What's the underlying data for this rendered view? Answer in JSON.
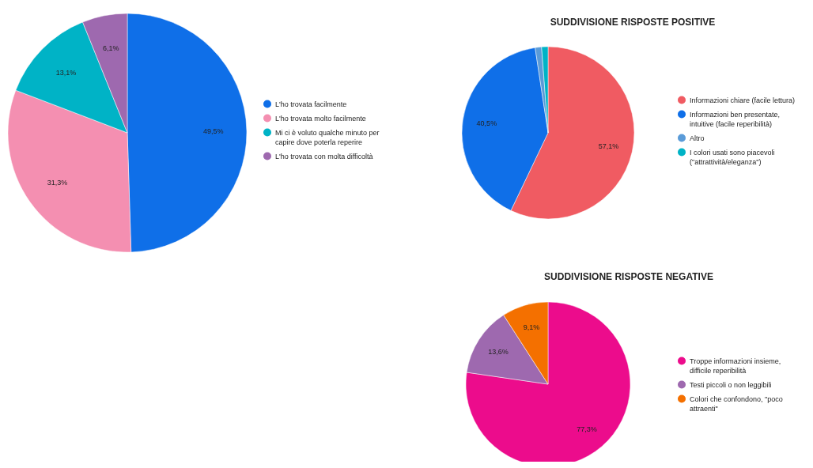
{
  "chart_data": [
    {
      "type": "pie",
      "categories": [
        "L'ho trovata facilmente",
        "L'ho trovata molto facilmente",
        "Mi ci è voluto qualche minuto per capire dove poterla reperire",
        "L'ho trovata con molta difficoltà"
      ],
      "values": [
        49.5,
        31.3,
        13.1,
        6.1
      ],
      "colors": [
        "#0f6fe8",
        "#f48fb1",
        "#00b3c6",
        "#9e69af"
      ],
      "value_labels": [
        "49,5%",
        "31,3%",
        "13,1%",
        "6,1%"
      ],
      "legend": "right"
    },
    {
      "type": "pie",
      "title": "SUDDIVISIONE RISPOSTE POSITIVE",
      "categories": [
        "Informazioni chiare (facile lettura)",
        "Informazioni ben presentate, intuitive (facile reperibilità)",
        "Altro",
        "I colori usati sono piacevoli (\"attrattività/eleganza\")"
      ],
      "values": [
        57.1,
        40.5,
        1.2,
        1.2
      ],
      "colors": [
        "#f05b62",
        "#0f6fe8",
        "#5a9bd8",
        "#00b3c6"
      ],
      "value_labels": [
        "57,1%",
        "40,5%",
        null,
        null
      ],
      "legend": "right"
    },
    {
      "type": "pie",
      "title": "SUDDIVISIONE RISPOSTE NEGATIVE",
      "categories": [
        "Troppe informazioni insieme, difficile reperibilità",
        "Testi piccoli o non leggibili",
        "Colori che confondono, \"poco attraenti\""
      ],
      "values": [
        77.3,
        13.6,
        9.1
      ],
      "colors": [
        "#ec0c8c",
        "#9e69af",
        "#f47000"
      ],
      "value_labels": [
        "77,3%",
        "13,6%",
        "9,1%"
      ],
      "legend": "right"
    }
  ]
}
